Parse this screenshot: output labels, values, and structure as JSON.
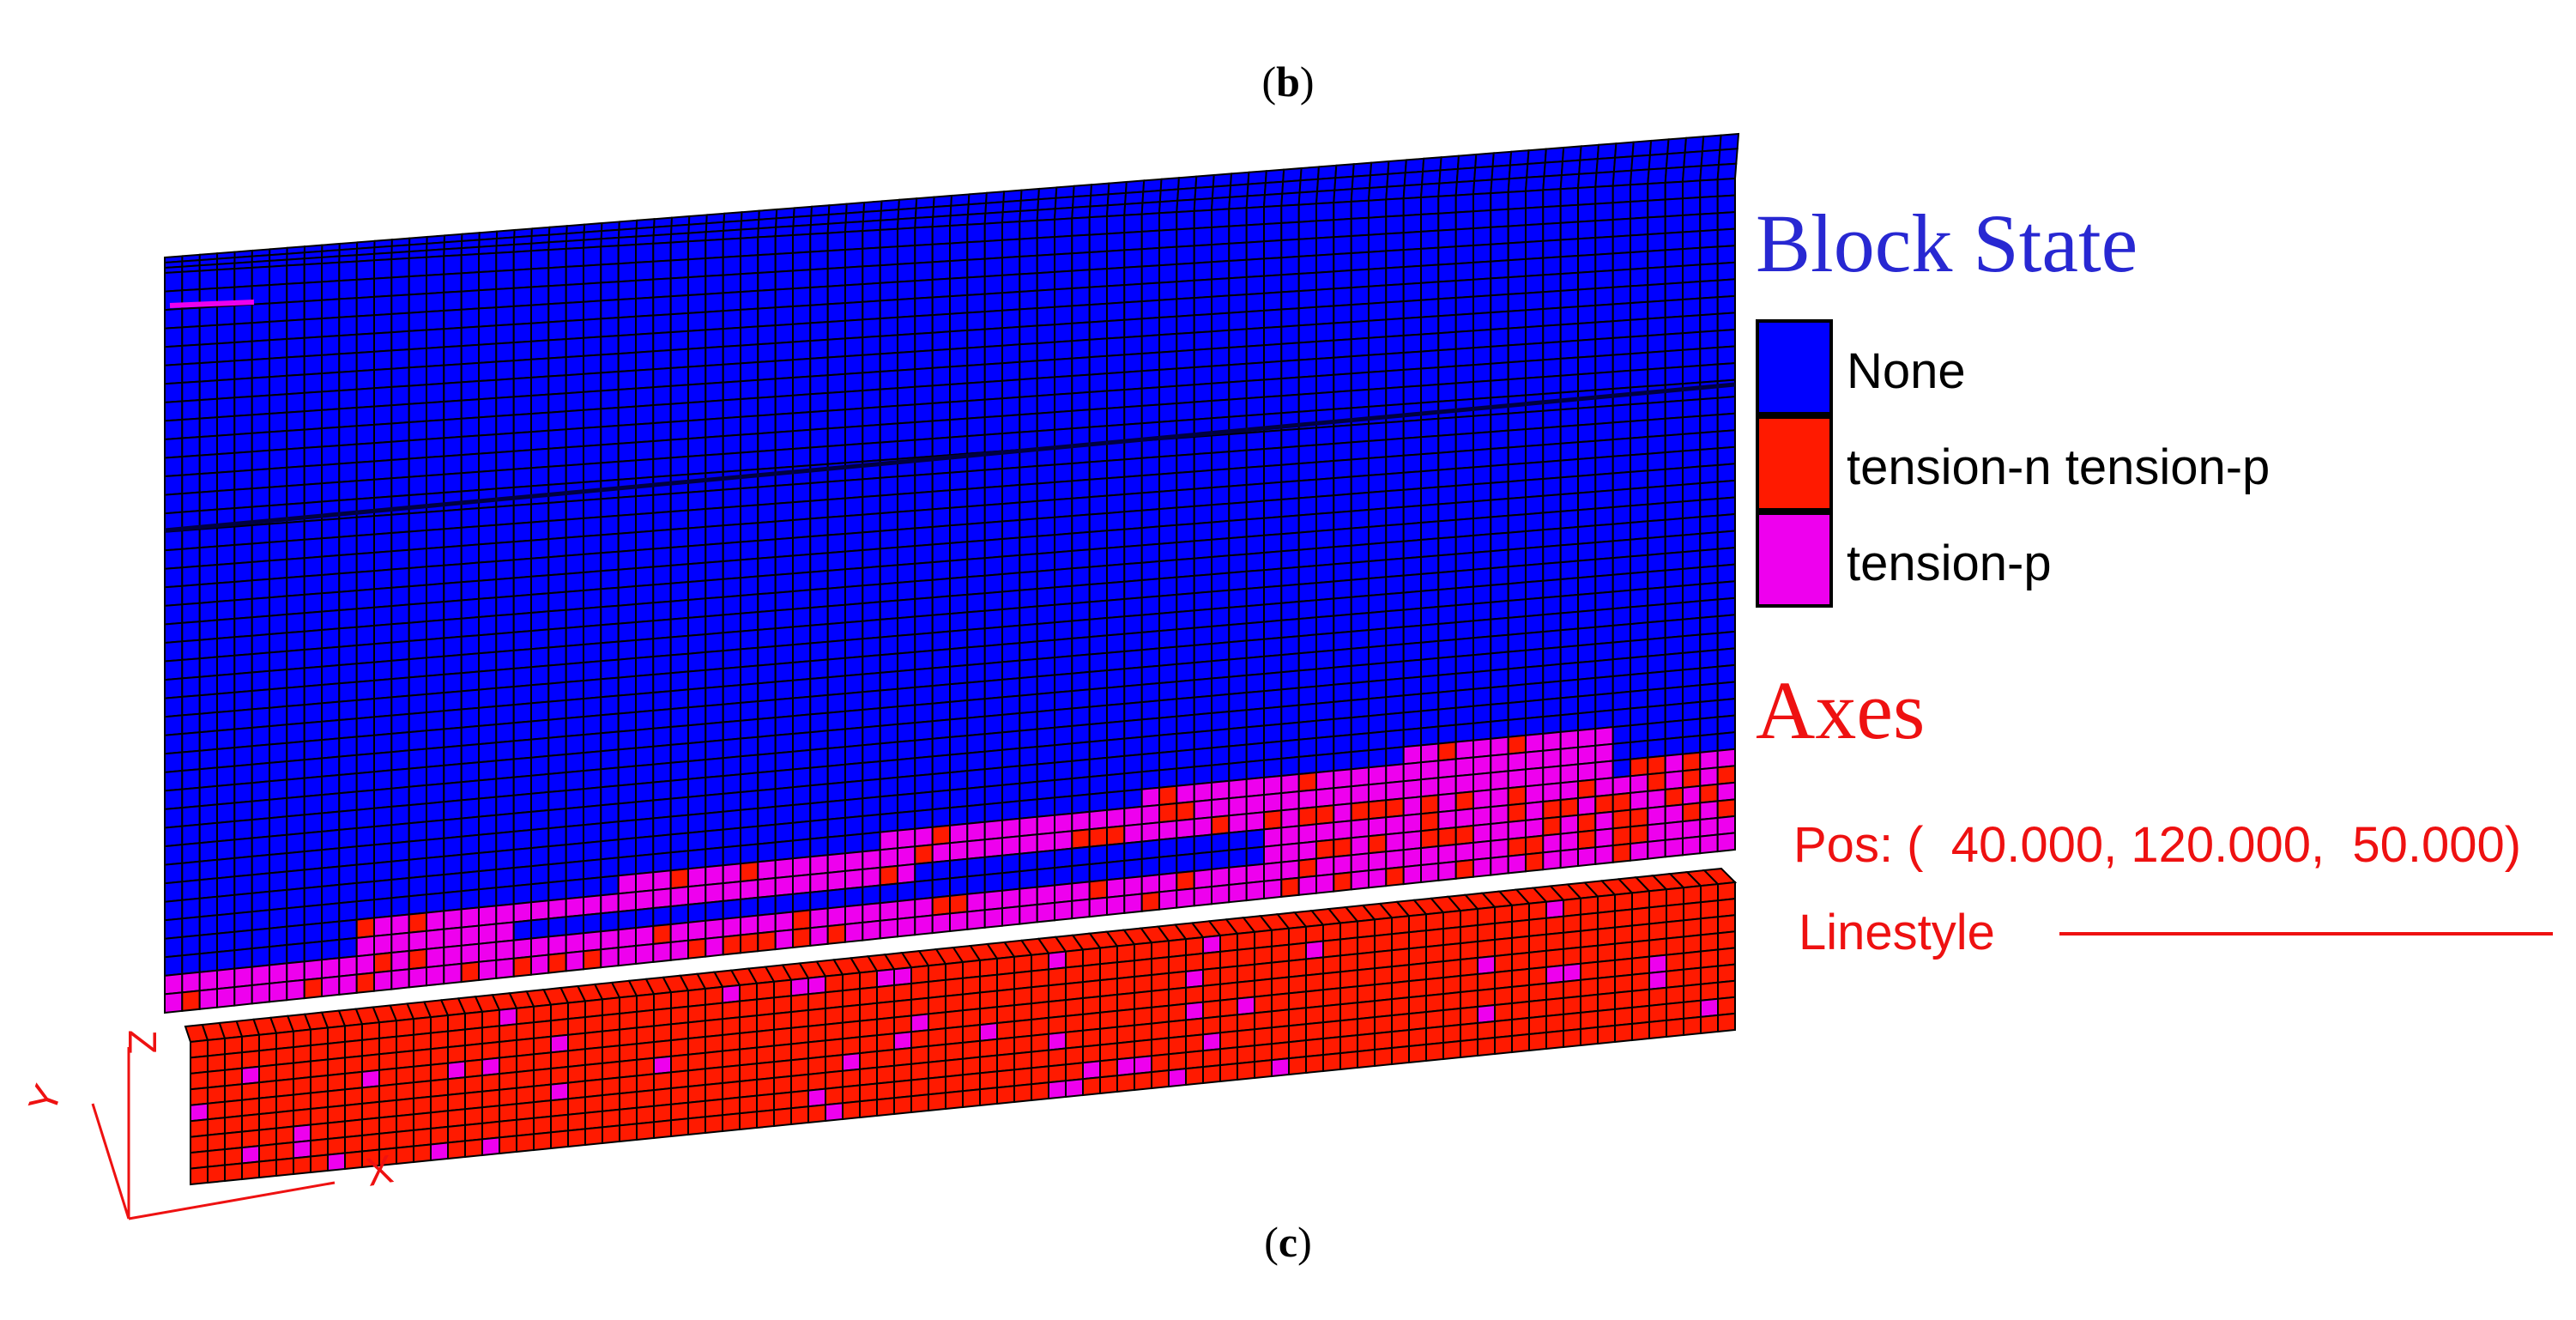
{
  "captions": {
    "top": "b",
    "bottom": "c"
  },
  "colors": {
    "none": "#0000ff",
    "tension_n_tension_p": "#ff1a00",
    "tension_p": "#ee00ee",
    "legend_title": "#2828d2",
    "axes": "#ee1111",
    "mesh_line": "#000000"
  },
  "legend": {
    "title": "Block State",
    "items": [
      {
        "label": "None",
        "state": "none"
      },
      {
        "label": "tension-n tension-p",
        "state": "tension_n_tension_p"
      },
      {
        "label": "tension-p",
        "state": "tension_p"
      }
    ]
  },
  "axes": {
    "title": "Axes",
    "pos_label": "Pos: (  40.000, 120.000,  50.000)",
    "linestyle_label": "Linestyle",
    "labels": {
      "z": "Z",
      "y": "Y",
      "x": "X"
    }
  }
}
